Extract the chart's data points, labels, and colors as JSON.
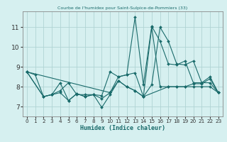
{
  "title": "Courbe de l'humidex pour Saint-Sulpice-de-Pommiers (33)",
  "xlabel": "Humidex (Indice chaleur)",
  "background_color": "#d6f0f0",
  "grid_color": "#b0d4d4",
  "line_color": "#1a6b6b",
  "xlim": [
    -0.5,
    23.5
  ],
  "ylim": [
    6.5,
    11.8
  ],
  "xticks": [
    0,
    1,
    2,
    3,
    4,
    5,
    6,
    7,
    8,
    9,
    10,
    11,
    12,
    13,
    14,
    15,
    16,
    17,
    18,
    19,
    20,
    21,
    22,
    23
  ],
  "yticks": [
    7,
    8,
    9,
    10,
    11
  ],
  "series": [
    {
      "x": [
        0,
        1,
        2,
        3,
        4,
        5,
        6,
        7,
        8,
        9,
        10,
        11,
        12,
        13,
        14,
        15,
        16,
        17,
        18,
        19,
        20,
        21,
        22,
        23
      ],
      "y": [
        8.75,
        8.6,
        7.5,
        7.6,
        7.8,
        8.2,
        7.6,
        7.6,
        7.6,
        7.55,
        8.75,
        8.5,
        8.6,
        11.5,
        8.1,
        11.05,
        10.3,
        9.15,
        9.1,
        9.3,
        8.2,
        8.2,
        8.5,
        7.7
      ]
    },
    {
      "x": [
        0,
        2,
        3,
        4,
        5,
        6,
        7,
        8,
        9,
        10,
        11,
        12,
        13,
        14,
        15,
        16,
        17,
        18,
        19,
        20,
        21,
        22,
        23
      ],
      "y": [
        8.75,
        7.5,
        7.6,
        7.7,
        7.3,
        7.65,
        7.5,
        7.6,
        7.4,
        7.7,
        8.3,
        8.0,
        7.8,
        7.5,
        11.0,
        8.0,
        8.0,
        8.0,
        8.0,
        8.0,
        8.0,
        8.0,
        7.7
      ]
    },
    {
      "x": [
        0,
        2,
        3,
        4,
        5,
        6,
        7,
        8,
        9,
        10,
        11,
        12,
        13,
        14,
        17,
        18,
        19,
        20,
        21,
        22,
        23
      ],
      "y": [
        8.75,
        7.5,
        7.6,
        8.2,
        7.3,
        7.65,
        7.5,
        7.6,
        6.95,
        7.6,
        8.3,
        8.0,
        7.8,
        7.5,
        8.0,
        8.0,
        8.0,
        8.15,
        8.15,
        8.4,
        7.7
      ]
    },
    {
      "x": [
        0,
        10,
        11,
        12,
        13,
        14,
        15,
        16,
        17,
        18,
        19,
        20,
        21,
        22,
        23
      ],
      "y": [
        8.75,
        7.7,
        8.5,
        8.6,
        8.7,
        7.5,
        8.1,
        11.0,
        10.3,
        9.15,
        9.1,
        9.3,
        8.2,
        8.2,
        7.7
      ]
    }
  ]
}
